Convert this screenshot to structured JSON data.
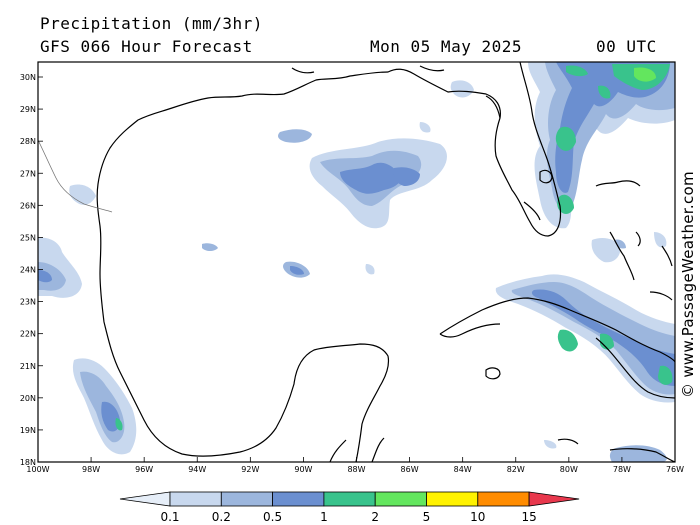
{
  "header": {
    "title": "Precipitation (mm/3hr)",
    "subtitle": "GFS 066 Hour Forecast",
    "valid_date": "Mon 05 May 2025",
    "valid_time": "00 UTC"
  },
  "credit": "© www.PassageWeather.com",
  "axes": {
    "lat_labels": [
      "30N",
      "29N",
      "28N",
      "27N",
      "26N",
      "25N",
      "24N",
      "23N",
      "22N",
      "21N",
      "20N",
      "19N",
      "18N"
    ],
    "lon_labels": [
      "100W",
      "98W",
      "96W",
      "94W",
      "92W",
      "90W",
      "88W",
      "86W",
      "84W",
      "82W",
      "80W",
      "78W",
      "76W"
    ]
  },
  "legend": {
    "labels": [
      "0.1",
      "0.2",
      "0.5",
      "1",
      "2",
      "5",
      "10",
      "15"
    ],
    "colors": [
      "#e6eef8",
      "#c8d8ee",
      "#9cb6dd",
      "#6b8fd0",
      "#39c38c",
      "#63e65e",
      "#fff200",
      "#ff8c00",
      "#e8384d"
    ]
  },
  "map": {
    "region": "Gulf of Mexico",
    "land_color": "#ffffff",
    "coast_color": "#000000"
  }
}
